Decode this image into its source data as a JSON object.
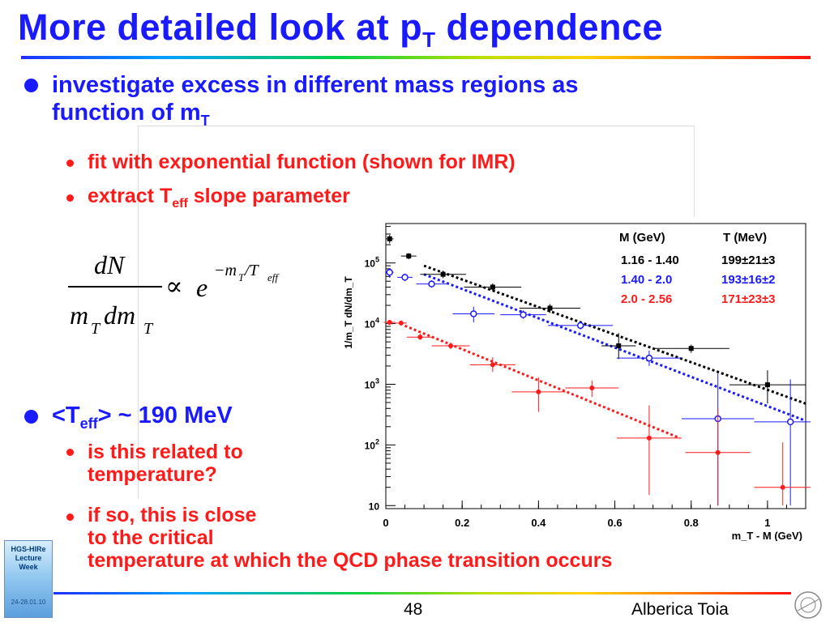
{
  "title": {
    "main": "More detailed look at p",
    "sub": "T",
    "rest": " dependence"
  },
  "bullets": {
    "b1_line1": "investigate excess in different mass regions as",
    "b1_line2": "function of m",
    "b1_line2_sub": "T",
    "b1a": "fit with exponential function (shown for IMR)",
    "b1b_pre": "extract T",
    "b1b_sub": "eff",
    "b1b_post": " slope parameter",
    "b2_pre": "<T",
    "b2_sub": "eff",
    "b2_post": "> ~ 190 MeV",
    "b2a_line1": "is this related to",
    "b2a_line2": "temperature?",
    "b2b_line1": "if so, this is close",
    "b2b_line2": "to the critical",
    "b2b_line3": "temperature at which the QCD phase transition occurs"
  },
  "formula": {
    "numerator": "dN",
    "den_m": "m",
    "den_sub1": "T",
    "den_dm": "dm",
    "den_sub2": "T",
    "prop": "∝",
    "base": "e",
    "exp": "−m",
    "exp_sub": "T",
    "exp_slash": " /T",
    "exp_sub2": "eff"
  },
  "chart_data": {
    "type": "scatter",
    "ylabel": "1/m_T dN/dm_T",
    "xlabel": "m_T - M  (GeV)",
    "x_ticks": [
      "0",
      "0.2",
      "0.4",
      "0.6",
      "0.8",
      "1"
    ],
    "y_ticks": [
      "10",
      "10^2",
      "10^3",
      "10^4",
      "10^5"
    ],
    "xlim": [
      0,
      1.1
    ],
    "ylim_log10": [
      0.95,
      5.65
    ],
    "legend": {
      "header_m": "M (GeV)",
      "header_t": "T (MeV)",
      "rows": [
        {
          "m": "1.16 - 1.40",
          "t": "199±21±3",
          "color": "#000000"
        },
        {
          "m": "1.40 - 2.0",
          "t": "193±16±2",
          "color": "#1a1aff"
        },
        {
          "m": "2.0   - 2.56",
          "t": "171±23±3",
          "color": "#ff1a1a"
        }
      ]
    },
    "series": [
      {
        "name": "1.16 - 1.40",
        "color": "#000000",
        "marker": "square",
        "points": [
          {
            "x": 0.01,
            "y": 250000,
            "xerr": 0.01,
            "lo": 210000,
            "hi": 290000
          },
          {
            "x": 0.06,
            "y": 130000,
            "xerr": 0.02,
            "lo": 115000,
            "hi": 145000
          },
          {
            "x": 0.15,
            "y": 65000,
            "xerr": 0.06,
            "lo": 56000,
            "hi": 75000
          },
          {
            "x": 0.28,
            "y": 40000,
            "xerr": 0.075,
            "lo": 35000,
            "hi": 46000
          },
          {
            "x": 0.43,
            "y": 18000,
            "xerr": 0.08,
            "lo": 15000,
            "hi": 21000
          },
          {
            "x": 0.61,
            "y": 4300,
            "xerr": 0.045,
            "lo": 2600,
            "hi": 7000
          },
          {
            "x": 0.8,
            "y": 3900,
            "xerr": 0.1,
            "lo": 3300,
            "hi": 4500
          },
          {
            "x": 1.0,
            "y": 980,
            "xerr": 0.1,
            "lo": 480,
            "hi": 1700
          }
        ],
        "fit": {
          "x0": 0.1,
          "y0": 90000,
          "x1": 1.1,
          "y1": 480
        }
      },
      {
        "name": "1.40 - 2.0",
        "color": "#1a1aff",
        "marker": "open-circle",
        "points": [
          {
            "x": 0.01,
            "y": 70000,
            "xerr": 0.01,
            "lo": 57000,
            "hi": 82000
          },
          {
            "x": 0.05,
            "y": 58000,
            "xerr": 0.02,
            "lo": 50000,
            "hi": 66000
          },
          {
            "x": 0.12,
            "y": 45000,
            "xerr": 0.04,
            "lo": 39000,
            "hi": 52000
          },
          {
            "x": 0.23,
            "y": 14500,
            "xerr": 0.055,
            "lo": 10500,
            "hi": 19000
          },
          {
            "x": 0.36,
            "y": 14000,
            "xerr": 0.06,
            "lo": 12000,
            "hi": 16500
          },
          {
            "x": 0.51,
            "y": 9300,
            "xerr": 0.085,
            "lo": 8000,
            "hi": 10800
          },
          {
            "x": 0.69,
            "y": 2700,
            "xerr": 0.085,
            "lo": 2000,
            "hi": 3600
          },
          {
            "x": 0.87,
            "y": 270,
            "xerr": 0.095,
            "lo": 10,
            "hi": 1500
          },
          {
            "x": 1.06,
            "y": 240,
            "xerr": 0.095,
            "lo": 10,
            "hi": 1200
          }
        ],
        "fit": {
          "x0": 0.1,
          "y0": 65000,
          "x1": 1.1,
          "y1": 250
        }
      },
      {
        "name": "2.0   - 2.56",
        "color": "#ff1a1a",
        "marker": "star",
        "points": [
          {
            "x": 0.01,
            "y": 10500,
            "xerr": 0.015,
            "lo": 9500,
            "hi": 11500
          },
          {
            "x": 0.04,
            "y": 10200,
            "xerr": 0.015,
            "lo": 9300,
            "hi": 11200
          },
          {
            "x": 0.09,
            "y": 6000,
            "xerr": 0.035,
            "lo": 5400,
            "hi": 6800
          },
          {
            "x": 0.17,
            "y": 4300,
            "xerr": 0.05,
            "lo": 3800,
            "hi": 4900
          },
          {
            "x": 0.28,
            "y": 2100,
            "xerr": 0.06,
            "lo": 1600,
            "hi": 2800
          },
          {
            "x": 0.4,
            "y": 750,
            "xerr": 0.07,
            "lo": 350,
            "hi": 1300
          },
          {
            "x": 0.54,
            "y": 870,
            "xerr": 0.07,
            "lo": 620,
            "hi": 1150
          },
          {
            "x": 0.69,
            "y": 130,
            "xerr": 0.085,
            "lo": 15,
            "hi": 450
          },
          {
            "x": 0.87,
            "y": 75,
            "xerr": 0.085,
            "lo": 10,
            "hi": 400
          },
          {
            "x": 1.04,
            "y": 20,
            "xerr": 0.075,
            "lo": 10,
            "hi": 110
          }
        ],
        "fit": {
          "x0": 0.05,
          "y0": 9200,
          "x1": 0.77,
          "y1": 130
        }
      }
    ]
  },
  "footer": {
    "page": "48",
    "author": "Alberica Toia"
  },
  "logo": {
    "line1": "HGS-HIRe",
    "line2": "Lecture",
    "line3": "Week",
    "date": "24-28.01.10"
  }
}
